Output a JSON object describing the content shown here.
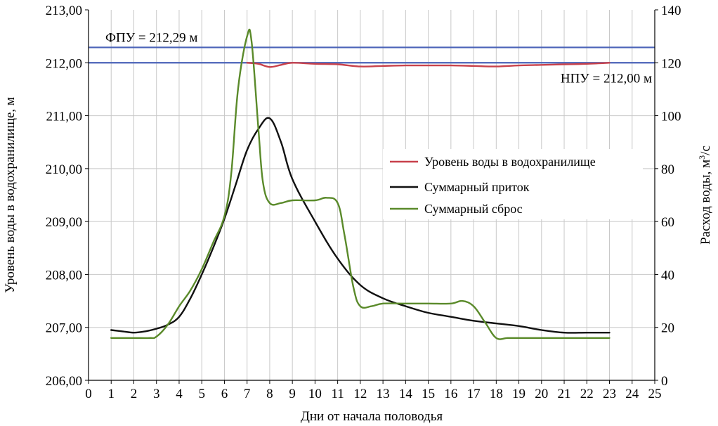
{
  "chart_data": {
    "type": "line",
    "xlabel": "Дни от начала половодья",
    "ylabel_left": "Уровень воды в водохранилище, м",
    "ylabel_right_prefix": "Расход воды, м",
    "ylabel_right_sup": "3",
    "ylabel_right_suffix": "/с",
    "x_range": [
      0,
      25
    ],
    "y_left_range": [
      206,
      213
    ],
    "y_right_range": [
      0,
      140
    ],
    "x_ticks": [
      "0",
      "1",
      "2",
      "3",
      "4",
      "5",
      "6",
      "7",
      "8",
      "9",
      "10",
      "11",
      "12",
      "13",
      "14",
      "15",
      "16",
      "17",
      "18",
      "19",
      "20",
      "21",
      "22",
      "23",
      "24",
      "25"
    ],
    "y_left_ticks": [
      "206,00",
      "207,00",
      "208,00",
      "209,00",
      "210,00",
      "211,00",
      "212,00",
      "213,00"
    ],
    "y_right_ticks": [
      "0",
      "20",
      "40",
      "60",
      "80",
      "100",
      "120",
      "140"
    ],
    "grid": true,
    "legend_position": "right-middle",
    "reference_lines": [
      {
        "label": "ФПУ = 212,29 м",
        "value": 212.29,
        "color": "#4a63b8"
      },
      {
        "label": "НПУ = 212,00 м",
        "value": 212.0,
        "color": "#4a63b8"
      }
    ],
    "series": [
      {
        "name": "Уровень воды в водохранилище",
        "axis": "left",
        "color": "#c8414b",
        "points": [
          [
            7,
            212.0
          ],
          [
            7.5,
            211.98
          ],
          [
            8,
            211.92
          ],
          [
            8.5,
            211.96
          ],
          [
            9,
            212.0
          ],
          [
            10,
            211.98
          ],
          [
            11,
            211.97
          ],
          [
            12,
            211.93
          ],
          [
            13,
            211.94
          ],
          [
            14,
            211.95
          ],
          [
            15,
            211.95
          ],
          [
            16,
            211.95
          ],
          [
            17,
            211.94
          ],
          [
            18,
            211.93
          ],
          [
            19,
            211.95
          ],
          [
            20,
            211.96
          ],
          [
            21,
            211.97
          ],
          [
            22,
            211.98
          ],
          [
            23,
            212.0
          ]
        ]
      },
      {
        "name": "Суммарный приток",
        "axis": "right",
        "color": "#111111",
        "points": [
          [
            1,
            19
          ],
          [
            1.5,
            18.5
          ],
          [
            2,
            18
          ],
          [
            2.5,
            18.5
          ],
          [
            3,
            19.5
          ],
          [
            3.5,
            21
          ],
          [
            4,
            24
          ],
          [
            4.5,
            31
          ],
          [
            5,
            40
          ],
          [
            5.5,
            50
          ],
          [
            6,
            61
          ],
          [
            6.5,
            74
          ],
          [
            7,
            87
          ],
          [
            7.5,
            95
          ],
          [
            8,
            99
          ],
          [
            8.5,
            90
          ],
          [
            9,
            76
          ],
          [
            10,
            60
          ],
          [
            11,
            46
          ],
          [
            12,
            36
          ],
          [
            13,
            31
          ],
          [
            14,
            28
          ],
          [
            15,
            25.5
          ],
          [
            16,
            24
          ],
          [
            17,
            22.5
          ],
          [
            18,
            21.5
          ],
          [
            19,
            20.5
          ],
          [
            20,
            19
          ],
          [
            21,
            18
          ],
          [
            22,
            18
          ],
          [
            23,
            18
          ]
        ]
      },
      {
        "name": "Суммарный сброс",
        "axis": "right",
        "color": "#5a8a2a",
        "points": [
          [
            1,
            16
          ],
          [
            2,
            16
          ],
          [
            2.7,
            16
          ],
          [
            3,
            16.5
          ],
          [
            3.5,
            21
          ],
          [
            4,
            28
          ],
          [
            4.5,
            34
          ],
          [
            5,
            42
          ],
          [
            5.5,
            52
          ],
          [
            6,
            62
          ],
          [
            6.3,
            78
          ],
          [
            6.6,
            110
          ],
          [
            7,
            130
          ],
          [
            7.2,
            128
          ],
          [
            7.5,
            95
          ],
          [
            7.7,
            75
          ],
          [
            8,
            67
          ],
          [
            8.5,
            67
          ],
          [
            9,
            68
          ],
          [
            10,
            68
          ],
          [
            10.5,
            69
          ],
          [
            11,
            67
          ],
          [
            11.3,
            55
          ],
          [
            11.7,
            35
          ],
          [
            12,
            28
          ],
          [
            12.5,
            28
          ],
          [
            13,
            29
          ],
          [
            14,
            29
          ],
          [
            15,
            29
          ],
          [
            16,
            29
          ],
          [
            16.5,
            30
          ],
          [
            17,
            28
          ],
          [
            17.5,
            22
          ],
          [
            18,
            16
          ],
          [
            18.5,
            16
          ],
          [
            19,
            16
          ],
          [
            20,
            16
          ],
          [
            21,
            16
          ],
          [
            22,
            16
          ],
          [
            23,
            16
          ]
        ]
      }
    ]
  }
}
